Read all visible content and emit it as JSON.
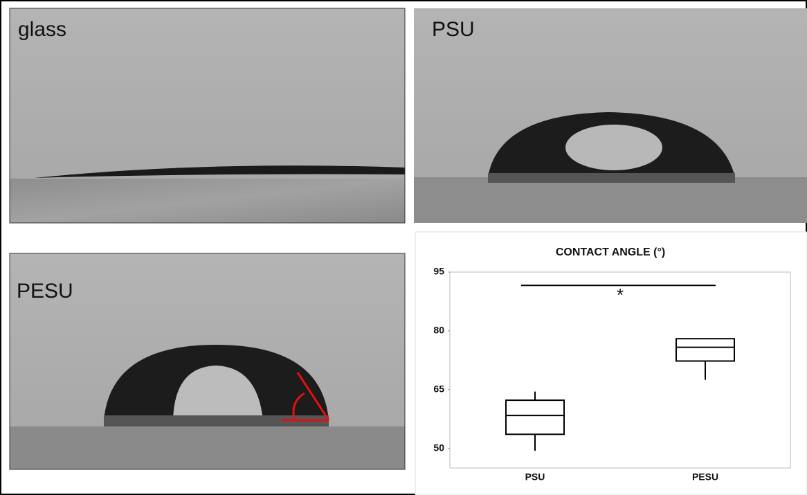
{
  "panels": [
    {
      "label": "glass"
    },
    {
      "label": "PSU"
    },
    {
      "label": "PESU"
    }
  ],
  "chart_data": {
    "type": "box",
    "title": "CONTACT ANGLE (°)",
    "categories": [
      "PSU",
      "PESU"
    ],
    "boxes": [
      {
        "min": 49.4,
        "q1": 53.6,
        "median": 58.4,
        "q3": 62.3,
        "max": 64.5
      },
      {
        "min": 67.5,
        "q1": 72.3,
        "median": 75.8,
        "q3": 78.0,
        "max": 78.0
      }
    ],
    "color": "#000000",
    "ylim": [
      45,
      95
    ],
    "yticks": [
      50,
      65,
      80,
      95
    ],
    "annotation": {
      "label": "*",
      "y": 91.6
    }
  }
}
